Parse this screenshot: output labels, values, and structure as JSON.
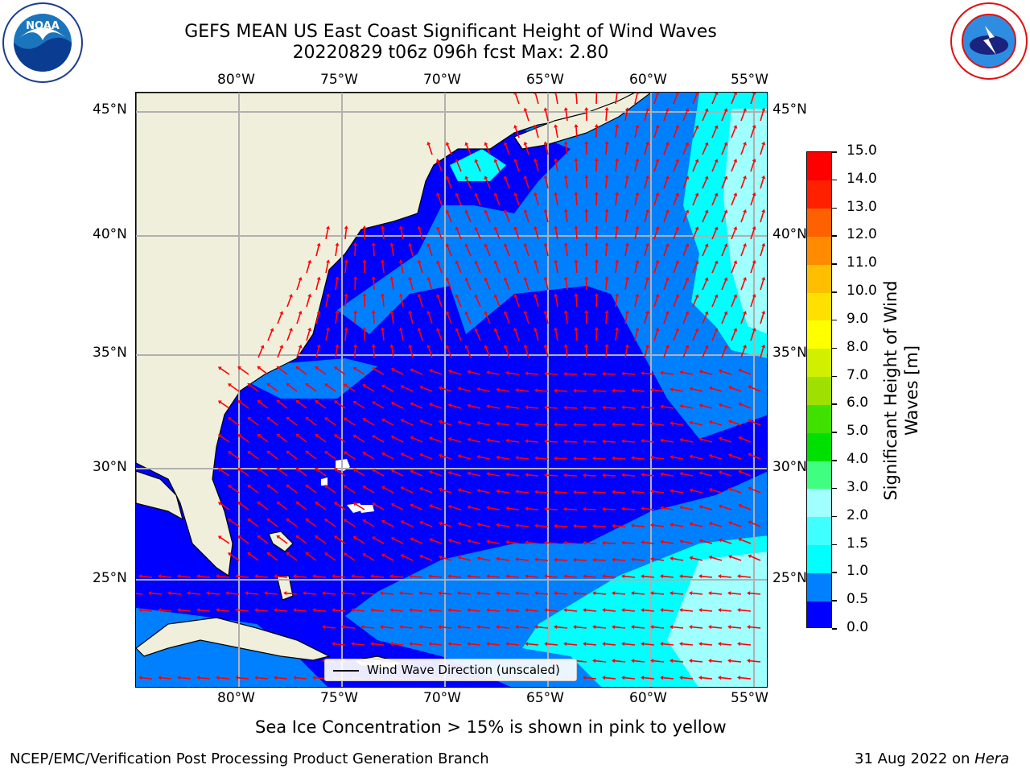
{
  "header": {
    "title_line1": "GEFS MEAN US East Coast Significant Height of Wind Waves",
    "title_line2": "20220829 t06z 096h fcst   Max: 2.80"
  },
  "logos": {
    "left": {
      "name": "noaa-logo",
      "text": "NOAA",
      "ring_text": "NATIONAL OCEANIC AND ATMOSPHERIC ADMINISTRATION · U.S. DEPARTMENT OF COMMERCE"
    },
    "right": {
      "name": "nws-logo",
      "ring_text": "NATIONAL WEATHER SERVICE"
    }
  },
  "map": {
    "lon_ticks_top": [
      "80°W",
      "75°W",
      "70°W",
      "65°W",
      "60°W",
      "55°W"
    ],
    "lon_ticks_bottom": [
      "80°W",
      "75°W",
      "70°W",
      "65°W",
      "60°W",
      "55°W"
    ],
    "lat_ticks_left": [
      "45°N",
      "40°N",
      "35°N",
      "30°N",
      "25°N"
    ],
    "lat_ticks_right": [
      "45°N",
      "40°N",
      "35°N",
      "30°N",
      "25°N"
    ],
    "lon_extent": [
      -85,
      -54.3
    ],
    "lat_extent": [
      20.3,
      46.3
    ],
    "land_color": "#efefdc",
    "arrow_color": "#ff0000",
    "grid_color": "#b0b0b0",
    "legend_label": "Wind Wave Direction (unscaled)"
  },
  "colorbar": {
    "title_line1": "Significant Height of Wind",
    "title_line2": "Waves [m]",
    "labels": [
      "0.0",
      "0.5",
      "1.0",
      "1.5",
      "2.0",
      "3.0",
      "4.0",
      "5.0",
      "6.0",
      "7.0",
      "8.0",
      "9.0",
      "10.0",
      "11.0",
      "12.0",
      "13.0",
      "14.0",
      "15.0"
    ],
    "colors": [
      "#0000ff",
      "#0080ff",
      "#00ffff",
      "#40ffff",
      "#a0ffff",
      "#40ff80",
      "#00e000",
      "#40e000",
      "#a0e000",
      "#d0f000",
      "#ffff00",
      "#ffe000",
      "#ffbf00",
      "#ff8c00",
      "#ff6000",
      "#ff2000",
      "#ff0000"
    ]
  },
  "footer": {
    "note": "Sea Ice Concentration > 15% is shown in pink to yellow",
    "left": "NCEP/EMC/Verification Post Processing Product Generation Branch",
    "right_date": "31 Aug 2022 on ",
    "right_host": "Hera"
  }
}
